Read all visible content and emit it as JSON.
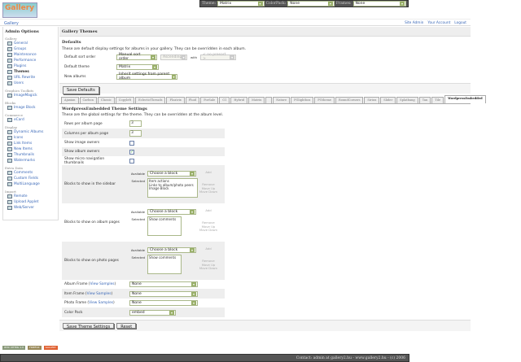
{
  "topbar": {
    "theme_label": "Theme:",
    "theme_value": "Matrix",
    "colorpack_label": "ColorPack:",
    "colorpack_value": "None",
    "frames_label": "Frames:",
    "frames_value": "None"
  },
  "header": {
    "logo_text": "Gallery",
    "breadcrumb": "Gallery",
    "links": [
      "Site Admin",
      "Your Account",
      "Logout"
    ]
  },
  "sidebar": {
    "title": "Admin Options",
    "groups": [
      {
        "label": "Gallery",
        "items": [
          {
            "label": "General"
          },
          {
            "label": "Groups"
          },
          {
            "label": "Maintenance"
          },
          {
            "label": "Performance"
          },
          {
            "label": "Plugins"
          },
          {
            "label": "Themes",
            "active": true
          },
          {
            "label": "URL Rewrite"
          },
          {
            "label": "Users"
          }
        ]
      },
      {
        "label": "Graphics Toolkits",
        "items": [
          {
            "label": "ImageMagick"
          }
        ]
      },
      {
        "label": "Blocks",
        "items": [
          {
            "label": "Image Block"
          }
        ]
      },
      {
        "label": "Commerce",
        "items": [
          {
            "label": "eCard"
          }
        ]
      },
      {
        "label": "Display",
        "items": [
          {
            "label": "Dynamic Albums"
          },
          {
            "label": "Icons"
          },
          {
            "label": "Link Items"
          },
          {
            "label": "New Items"
          },
          {
            "label": "Thumbnails"
          },
          {
            "label": "Watermarks"
          }
        ]
      },
      {
        "label": "Extra Data",
        "items": [
          {
            "label": "Comments"
          },
          {
            "label": "Custom Fields"
          },
          {
            "label": "MultiLanguage"
          }
        ]
      },
      {
        "label": "Import",
        "items": [
          {
            "label": "Remote"
          },
          {
            "label": "Upload Applet"
          },
          {
            "label": "Web/Server"
          }
        ]
      }
    ]
  },
  "main": {
    "title": "Gallery Themes",
    "defaults": {
      "heading": "Defaults",
      "description": "These are default display settings for albums in your gallery. They can be overridden in each album.",
      "sort_label": "Default sort order",
      "sort_value": "Manual sort order",
      "sort_dir": "Ascending",
      "with_label": "with",
      "presort": "< no presort >",
      "theme_label": "Default theme",
      "theme_value": "Matrix",
      "new_label": "New albums",
      "new_value": "Inherit settings from parent album",
      "save": "Save Defaults"
    },
    "tabs": [
      "Ajaxian",
      "Carbon",
      "Classic",
      "Copyleft",
      "EclecticThreads",
      "Floatrix",
      "Fluid",
      "ForSale",
      "G1",
      "Hybrid",
      "Matrix",
      "",
      "Nature",
      "PGlightbox",
      "PGtheme",
      "RoundCorners",
      "Siriux",
      "Slider",
      "Splatbang",
      "Tan",
      "Tile",
      "WordpressEmbedded"
    ],
    "theme_settings": {
      "heading": "WordpressEmbedded Theme Settings",
      "description": "These are the global settings for the theme. They can be overridden at the album level.",
      "rows_label": "Rows per album page",
      "rows": "3",
      "cols_label": "Columns per album page",
      "cols": "3",
      "image_owners": "Show image owners",
      "image_owners_checked": false,
      "album_owners": "Show album owners",
      "album_owners_checked": true,
      "micro_nav": "Show micro navigation thumbnails",
      "micro_nav_checked": false,
      "available": "Available",
      "selected": "Selected",
      "choose": "Choose a block",
      "add": "Add",
      "remove": "Remove",
      "move_up": "Move Up",
      "move_down": "Move Down",
      "sidebar_blocks_label": "Blocks to show in the sidebar",
      "sidebar_blocks": [
        "Item actions",
        "Links to album/photo peers",
        "Image Block"
      ],
      "album_blocks_label": "Blocks to show on album pages",
      "album_blocks": [
        "Show comments"
      ],
      "photo_blocks_label": "Blocks to show on photo pages",
      "photo_blocks": [
        "Show comments"
      ],
      "view_samples": "View Samples",
      "album_frame": "Album Frame",
      "album_frame_value": "None",
      "item_frame": "Item Frame",
      "item_frame_value": "None",
      "photo_frame": "Photo Frame",
      "photo_frame_value": "None",
      "color_pack": "Color Pack",
      "color_pack_value": "embed",
      "save": "Save Theme Settings",
      "reset": "Reset"
    }
  },
  "badges": [
    "W3C XHTML 1.0",
    "FIREFOX",
    "GALLERY"
  ],
  "footer": "Contact: admin at gallery2.hu - www.gallery2.hu - (c) 2006"
}
